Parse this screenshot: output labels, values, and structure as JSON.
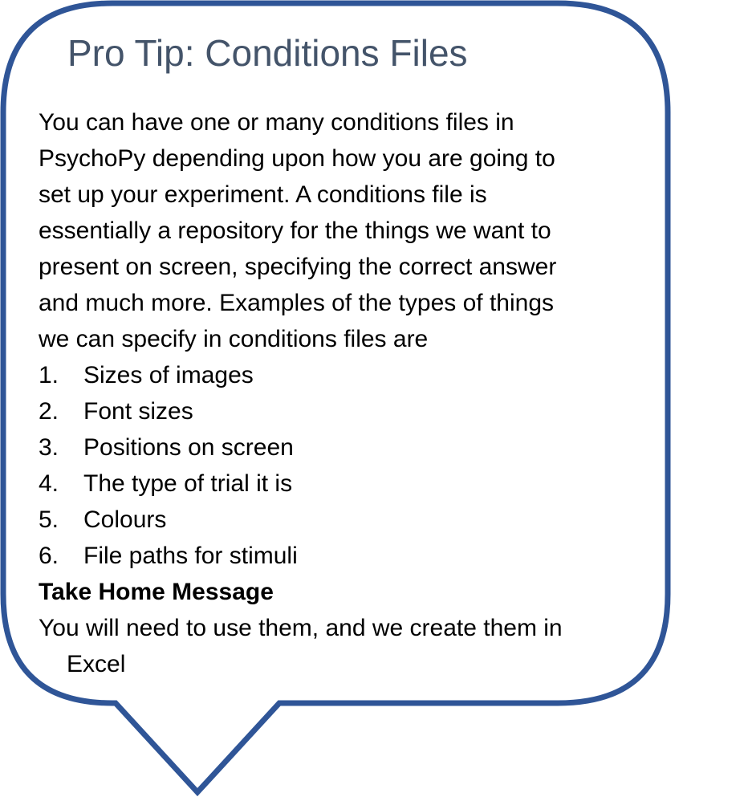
{
  "callout": {
    "title": "Pro Tip: Conditions Files",
    "intro_lines": [
      "You can have one or many conditions files in",
      "PsychoPy depending upon how you are going to",
      "set up your experiment. A conditions file is",
      "essentially a repository for the things we want to",
      "present on screen, specifying the correct answer",
      "and much more. Examples of the types of things",
      "we can specify in conditions files are"
    ],
    "list": [
      {
        "number": "1.",
        "text": "Sizes of images"
      },
      {
        "number": "2.",
        "text": "Font sizes"
      },
      {
        "number": "3.",
        "text": "Positions on screen"
      },
      {
        "number": "4.",
        "text": "The type of trial it is"
      },
      {
        "number": "5.",
        "text": "Colours"
      },
      {
        "number": "6.",
        "text": "File paths for stimuli"
      }
    ],
    "message_heading": "Take Home Message",
    "message_line_1": "You will need to use them, and we create them in",
    "message_line_2": "Excel",
    "colors": {
      "border": "#2f5597",
      "title": "#44546a",
      "text": "#000000",
      "fill": "#ffffff"
    }
  }
}
